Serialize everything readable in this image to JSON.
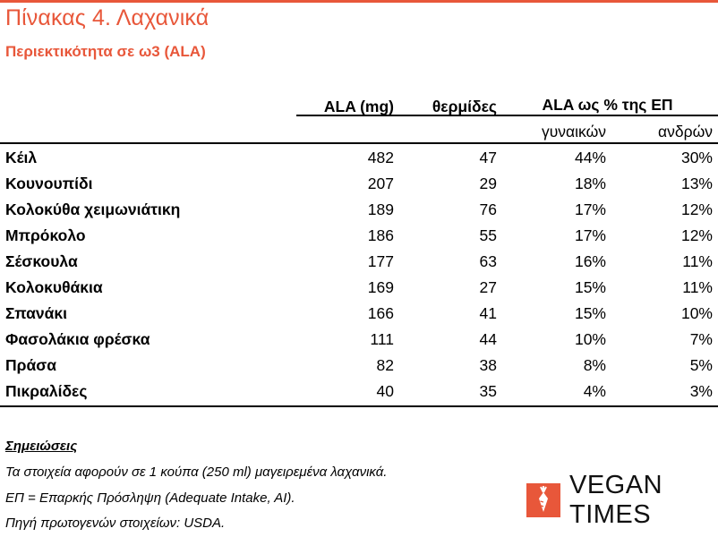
{
  "title": "Πίνακας 4. Λαχανικά",
  "subtitle": "Περιεκτικότητα σε ω3 (ALA)",
  "headers": {
    "ala": "ALA (mg)",
    "calories": "θερμίδες",
    "pct": "ALA ως % της ΕΠ",
    "women": "γυναικών",
    "men": "ανδρών"
  },
  "rows": [
    {
      "name": "Κέιλ",
      "ala": "482",
      "cal": "47",
      "w": "44%",
      "m": "30%"
    },
    {
      "name": "Κουνουπίδι",
      "ala": "207",
      "cal": "29",
      "w": "18%",
      "m": "13%"
    },
    {
      "name": "Κολοκύθα χειμωνιάτικη",
      "ala": "189",
      "cal": "76",
      "w": "17%",
      "m": "12%"
    },
    {
      "name": "Μπρόκολο",
      "ala": "186",
      "cal": "55",
      "w": "17%",
      "m": "12%"
    },
    {
      "name": "Σέσκουλα",
      "ala": "177",
      "cal": "63",
      "w": "16%",
      "m": "11%"
    },
    {
      "name": "Κολοκυθάκια",
      "ala": "169",
      "cal": "27",
      "w": "15%",
      "m": "11%"
    },
    {
      "name": "Σπανάκι",
      "ala": "166",
      "cal": "41",
      "w": "15%",
      "m": "10%"
    },
    {
      "name": "Φασολάκια φρέσκα",
      "ala": "111",
      "cal": "44",
      "w": "10%",
      "m": "7%"
    },
    {
      "name": "Πράσα",
      "ala": "82",
      "cal": "38",
      "w": "8%",
      "m": "5%"
    },
    {
      "name": "Πικραλίδες",
      "ala": "40",
      "cal": "35",
      "w": "4%",
      "m": "3%"
    }
  ],
  "notes": {
    "title": "Σημειώσεις",
    "lines": [
      "Τα στοιχεία αφορούν σε 1 κούπα (250 ml) μαγειρεμένα λαχανικά.",
      "ΕΠ = Επαρκής Πρόσληψη (Adequate Intake, AI).",
      "Πηγή πρωτογενών στοιχείων: USDA."
    ]
  },
  "logo": {
    "text": "VEGAN TIMES",
    "icon": "carrot-icon",
    "color": "#e8573a"
  }
}
